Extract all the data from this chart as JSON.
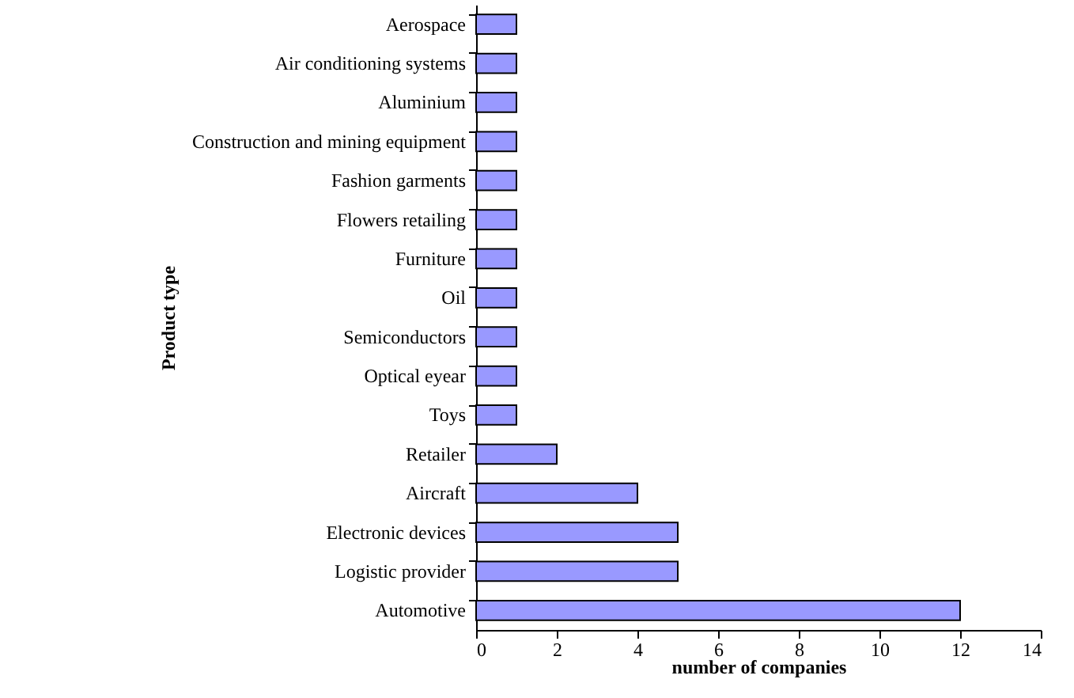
{
  "chart_data": {
    "type": "bar",
    "orientation": "horizontal",
    "xlabel": "number of companies",
    "ylabel": "Product type",
    "categories": [
      "Aerospace",
      "Air conditioning systems",
      "Aluminium",
      "Construction and mining equipment",
      "Fashion garments",
      "Flowers retailing",
      "Furniture",
      "Oil",
      "Semiconductors",
      "Optical eyear",
      "Toys",
      "Retailer",
      "Aircraft",
      "Electronic devices",
      "Logistic provider",
      "Automotive"
    ],
    "values": [
      1,
      1,
      1,
      1,
      1,
      1,
      1,
      1,
      1,
      1,
      1,
      2,
      4,
      5,
      5,
      12
    ],
    "color": "#9999ff",
    "xlim": [
      0,
      14
    ],
    "xticks": [
      0,
      2,
      4,
      6,
      8,
      10,
      12,
      14
    ],
    "grid": false
  }
}
